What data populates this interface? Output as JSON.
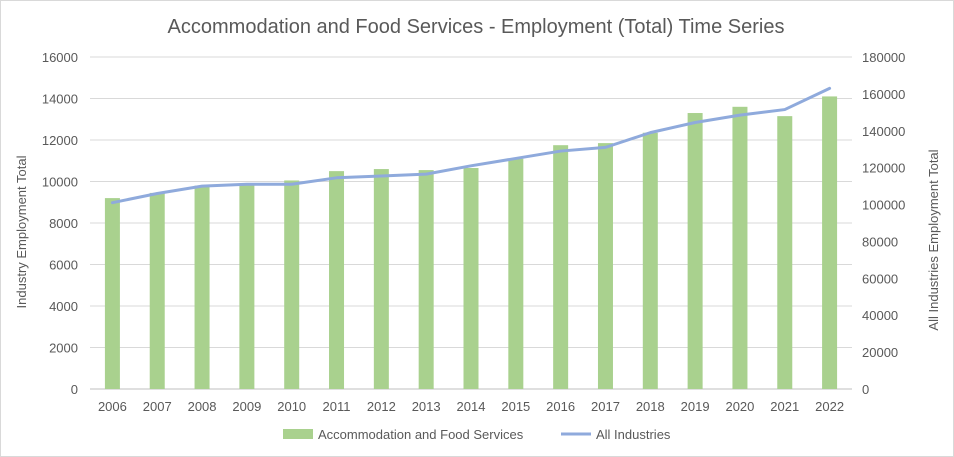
{
  "chart_data": {
    "type": "bar",
    "title": "Accommodation and Food Services - Employment (Total) Time Series",
    "xlabel": "",
    "ylabel": "Industry Employment Total",
    "y2label": "All Industries Employment Total",
    "categories": [
      "2006",
      "2007",
      "2008",
      "2009",
      "2010",
      "2011",
      "2012",
      "2013",
      "2014",
      "2015",
      "2016",
      "2017",
      "2018",
      "2019",
      "2020",
      "2021",
      "2022"
    ],
    "ylim": [
      0,
      16000
    ],
    "y2lim": [
      0,
      180000
    ],
    "yticks": [
      0,
      2000,
      4000,
      6000,
      8000,
      10000,
      12000,
      14000,
      16000
    ],
    "y2ticks": [
      0,
      20000,
      40000,
      60000,
      80000,
      100000,
      120000,
      140000,
      160000,
      180000
    ],
    "series": [
      {
        "name": "Accommodation and Food Services",
        "type": "bar",
        "axis": "left",
        "color": "#a9d18e",
        "values": [
          9200,
          9450,
          9800,
          9900,
          10050,
          10500,
          10600,
          10550,
          10650,
          11100,
          11750,
          11850,
          12350,
          13300,
          13600,
          13150,
          14100
        ]
      },
      {
        "name": "All Industries",
        "type": "line",
        "axis": "right",
        "color": "#8faadc",
        "values": [
          101000,
          106000,
          110000,
          111000,
          111000,
          114500,
          115500,
          116500,
          121000,
          125000,
          129000,
          131000,
          139000,
          144500,
          148500,
          151500,
          163000
        ]
      }
    ],
    "grid": true,
    "legend_position": "bottom"
  }
}
